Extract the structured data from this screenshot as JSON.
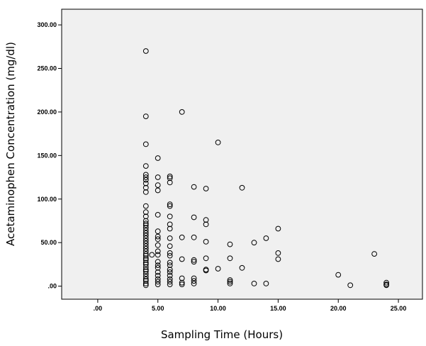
{
  "chart_data": {
    "type": "scatter",
    "title": "",
    "xlabel": "Sampling Time (Hours)",
    "ylabel": "Acetaminophen Concentration (mg/dl)",
    "xlim": [
      -3,
      27
    ],
    "ylim": [
      -15,
      318
    ],
    "xticks": [
      0,
      5,
      10,
      15,
      20,
      25
    ],
    "xtick_labels": [
      ".00",
      "5.00",
      "10.00",
      "15.00",
      "20.00",
      "25.00"
    ],
    "yticks": [
      0,
      50,
      100,
      150,
      200,
      250,
      300
    ],
    "ytick_labels": [
      ".00",
      "50.00",
      "100.00",
      "150.00",
      "200.00",
      "250.00",
      "300.00"
    ],
    "grid": false,
    "marker": "open-circle",
    "colors": {
      "plot_background": "#f0f0f0",
      "marker_stroke": "#000000",
      "axis": "#000000"
    },
    "points": [
      [
        4,
        270
      ],
      [
        4,
        195
      ],
      [
        4,
        163
      ],
      [
        4,
        138
      ],
      [
        4,
        128
      ],
      [
        4,
        125
      ],
      [
        4,
        122
      ],
      [
        4,
        118
      ],
      [
        4,
        113
      ],
      [
        4,
        108
      ],
      [
        4,
        92
      ],
      [
        4,
        85
      ],
      [
        4,
        80
      ],
      [
        4,
        75
      ],
      [
        4,
        72
      ],
      [
        4,
        70
      ],
      [
        4,
        67
      ],
      [
        4,
        64
      ],
      [
        4,
        61
      ],
      [
        4,
        58
      ],
      [
        4,
        55
      ],
      [
        4,
        52
      ],
      [
        4,
        49
      ],
      [
        4,
        46
      ],
      [
        4,
        43
      ],
      [
        4,
        40
      ],
      [
        4,
        37
      ],
      [
        4,
        35
      ],
      [
        4,
        32
      ],
      [
        4,
        30
      ],
      [
        4,
        27
      ],
      [
        4,
        25
      ],
      [
        4,
        22
      ],
      [
        4,
        19
      ],
      [
        4,
        17
      ],
      [
        4,
        14
      ],
      [
        4,
        11
      ],
      [
        4,
        8
      ],
      [
        4,
        6
      ],
      [
        4,
        3
      ],
      [
        4,
        1
      ],
      [
        4.5,
        36
      ],
      [
        5,
        147
      ],
      [
        5,
        125
      ],
      [
        5,
        116
      ],
      [
        5,
        110
      ],
      [
        5,
        82
      ],
      [
        5,
        63
      ],
      [
        5,
        57
      ],
      [
        5,
        54
      ],
      [
        5,
        47
      ],
      [
        5,
        40
      ],
      [
        5,
        36
      ],
      [
        5,
        28
      ],
      [
        5,
        24
      ],
      [
        5,
        21
      ],
      [
        5,
        16
      ],
      [
        5,
        12
      ],
      [
        5,
        8
      ],
      [
        5,
        5
      ],
      [
        5,
        2
      ],
      [
        6,
        126
      ],
      [
        6,
        124
      ],
      [
        6,
        119
      ],
      [
        6,
        94
      ],
      [
        6,
        92
      ],
      [
        6,
        80
      ],
      [
        6,
        71
      ],
      [
        6,
        66
      ],
      [
        6,
        55
      ],
      [
        6,
        46
      ],
      [
        6,
        38
      ],
      [
        6,
        35
      ],
      [
        6,
        27
      ],
      [
        6,
        24
      ],
      [
        6,
        19
      ],
      [
        6,
        16
      ],
      [
        6,
        12
      ],
      [
        6,
        8
      ],
      [
        6,
        5
      ],
      [
        6,
        2
      ],
      [
        7,
        200
      ],
      [
        7,
        56
      ],
      [
        7,
        31
      ],
      [
        7,
        9
      ],
      [
        7,
        4
      ],
      [
        7,
        2
      ],
      [
        8,
        114
      ],
      [
        8,
        79
      ],
      [
        8,
        56
      ],
      [
        8,
        30
      ],
      [
        8,
        28
      ],
      [
        8,
        9
      ],
      [
        8,
        6
      ],
      [
        8,
        3
      ],
      [
        9,
        112
      ],
      [
        9,
        76
      ],
      [
        9,
        71
      ],
      [
        9,
        51
      ],
      [
        9,
        32
      ],
      [
        9,
        19
      ],
      [
        9,
        18
      ],
      [
        10,
        165
      ],
      [
        10,
        20
      ],
      [
        11,
        48
      ],
      [
        11,
        32
      ],
      [
        11,
        7
      ],
      [
        11,
        5
      ],
      [
        11,
        3
      ],
      [
        12,
        113
      ],
      [
        12,
        21
      ],
      [
        13,
        50
      ],
      [
        13,
        3
      ],
      [
        14,
        55
      ],
      [
        14,
        3
      ],
      [
        15,
        66
      ],
      [
        15,
        38
      ],
      [
        15,
        31
      ],
      [
        20,
        13
      ],
      [
        21,
        1
      ],
      [
        23,
        37
      ],
      [
        24,
        4
      ],
      [
        24,
        2
      ],
      [
        24,
        1
      ]
    ]
  }
}
